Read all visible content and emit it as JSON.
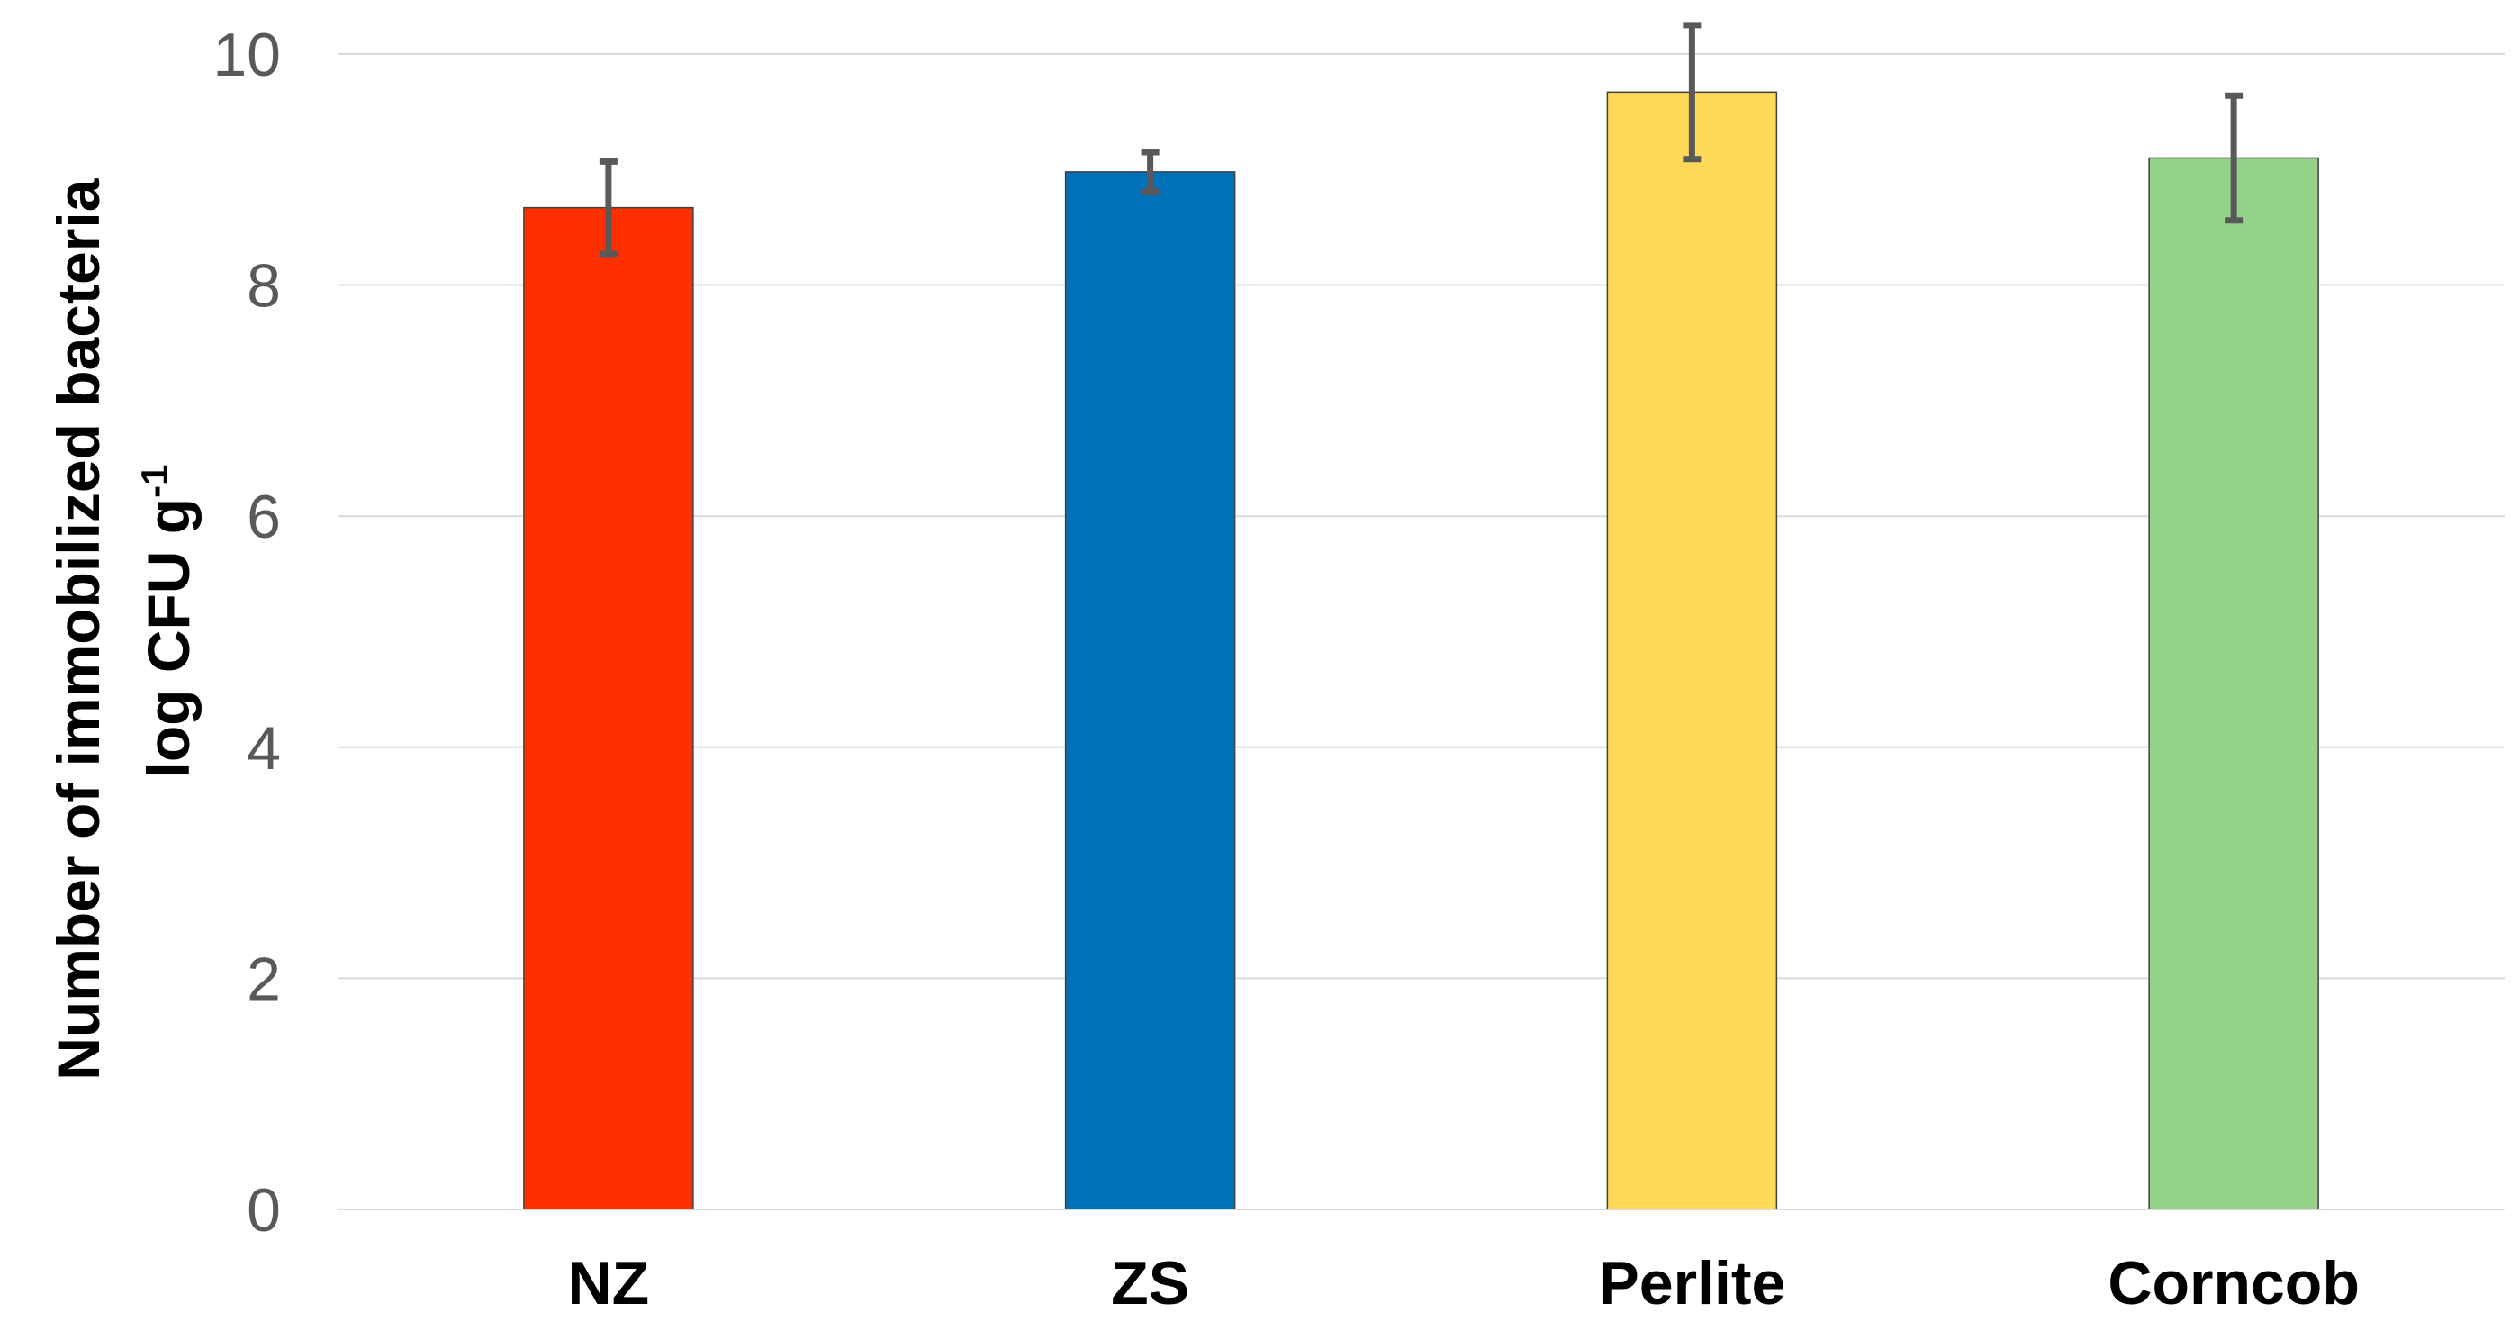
{
  "chart_data": {
    "type": "bar",
    "title": "",
    "categories": [
      "NZ",
      "ZS",
      "Perlite",
      "Corncob"
    ],
    "values": [
      8.67,
      8.98,
      9.67,
      9.1
    ],
    "error": [
      0.4,
      0.17,
      0.58,
      0.54
    ],
    "colors": [
      "#ff3000",
      "#0070b8",
      "#ffd95a",
      "#93d287"
    ],
    "xlabel": "",
    "ylabel": {
      "line1": "Number of immobilized bacteria",
      "line2": "log CFU g",
      "line2_superscript": "-1"
    },
    "ylim": [
      0,
      10
    ],
    "yticks": [
      "0",
      "2",
      "4",
      "6",
      "8",
      "10"
    ],
    "grid": true,
    "legend": "none"
  }
}
